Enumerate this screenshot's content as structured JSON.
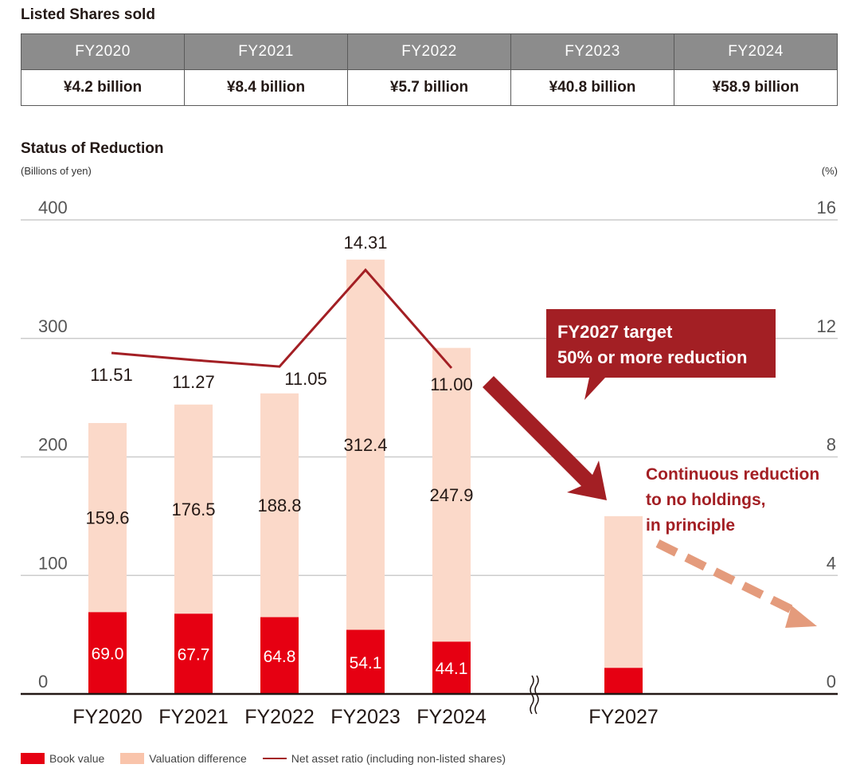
{
  "shares_table": {
    "title": "Listed Shares sold",
    "headers": [
      "FY2020",
      "FY2021",
      "FY2022",
      "FY2023",
      "FY2024"
    ],
    "values": [
      "¥4.2 billion",
      "¥8.4 billion",
      "¥5.7 billion",
      "¥40.8 billion",
      "¥58.9 billion"
    ]
  },
  "chart_title": "Status of Reduction",
  "unit_left": "(Billions of yen)",
  "unit_right": "(%)",
  "callout": {
    "line1": "FY2027 target",
    "line2": "50% or more reduction"
  },
  "continuous_note": [
    "Continuous reduction",
    "to no holdings,",
    "in principle"
  ],
  "legend": {
    "book": "Book value",
    "valuation": "Valuation difference",
    "ratio": "Net asset ratio (including non-listed shares)"
  },
  "colors": {
    "book": "#e60012",
    "valuation": "#fbd9c9",
    "ratio": "#a31f24",
    "callout": "#a31f24",
    "dashed_arrow": "#e49b7c",
    "grid": "#cccccc"
  },
  "chart_data": {
    "type": "bar",
    "stacked": true,
    "categories": [
      "FY2020",
      "FY2021",
      "FY2022",
      "FY2023",
      "FY2024",
      "FY2027"
    ],
    "series": [
      {
        "name": "Book value",
        "values": [
          69.0,
          67.7,
          64.8,
          54.1,
          44.1,
          22
        ]
      },
      {
        "name": "Valuation difference",
        "values": [
          159.6,
          176.5,
          188.8,
          312.4,
          247.9,
          128
        ]
      }
    ],
    "line_series": {
      "name": "Net asset ratio (including non-listed shares)",
      "values": [
        11.51,
        11.27,
        11.05,
        14.31,
        11.0
      ]
    },
    "book_labels": [
      "69.0",
      "67.7",
      "64.8",
      "54.1",
      "44.1"
    ],
    "valuation_labels": [
      "159.6",
      "176.5",
      "188.8",
      "312.4",
      "247.9"
    ],
    "ratio_labels": [
      "11.51",
      "11.27",
      "11.05",
      "14.31",
      "11.00"
    ],
    "y_left": {
      "ticks": [
        0,
        100,
        200,
        300,
        400
      ],
      "range": [
        0,
        400
      ]
    },
    "y_right": {
      "ticks": [
        0,
        4,
        8,
        12,
        16
      ],
      "range": [
        0,
        16
      ]
    },
    "axis_break_after": "FY2024",
    "grid": true,
    "legend_position": "bottom-left"
  }
}
